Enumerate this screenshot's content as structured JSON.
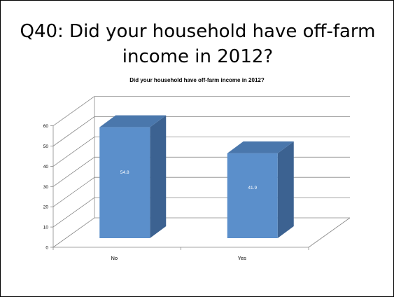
{
  "slide": {
    "title": "Q40: Did your household have off-farm income in 2012?"
  },
  "chart_data": {
    "type": "bar",
    "title": "Did your household have off-farm income in 2012?",
    "categories": [
      "No",
      "Yes"
    ],
    "values": [
      54.8,
      41.9
    ],
    "data_labels": [
      "54.8",
      "41.9"
    ],
    "ylim": [
      0,
      60
    ],
    "yticks": [
      0,
      10,
      20,
      30,
      40,
      50,
      60
    ],
    "xlabel": "",
    "ylabel": "",
    "grid": true,
    "three_d": true,
    "colors": {
      "bar_front": "#5b8fcb",
      "bar_side": "#3c6291",
      "bar_top": "#4a77ac",
      "grid": "#888888",
      "data_label": "#ffffff"
    }
  }
}
